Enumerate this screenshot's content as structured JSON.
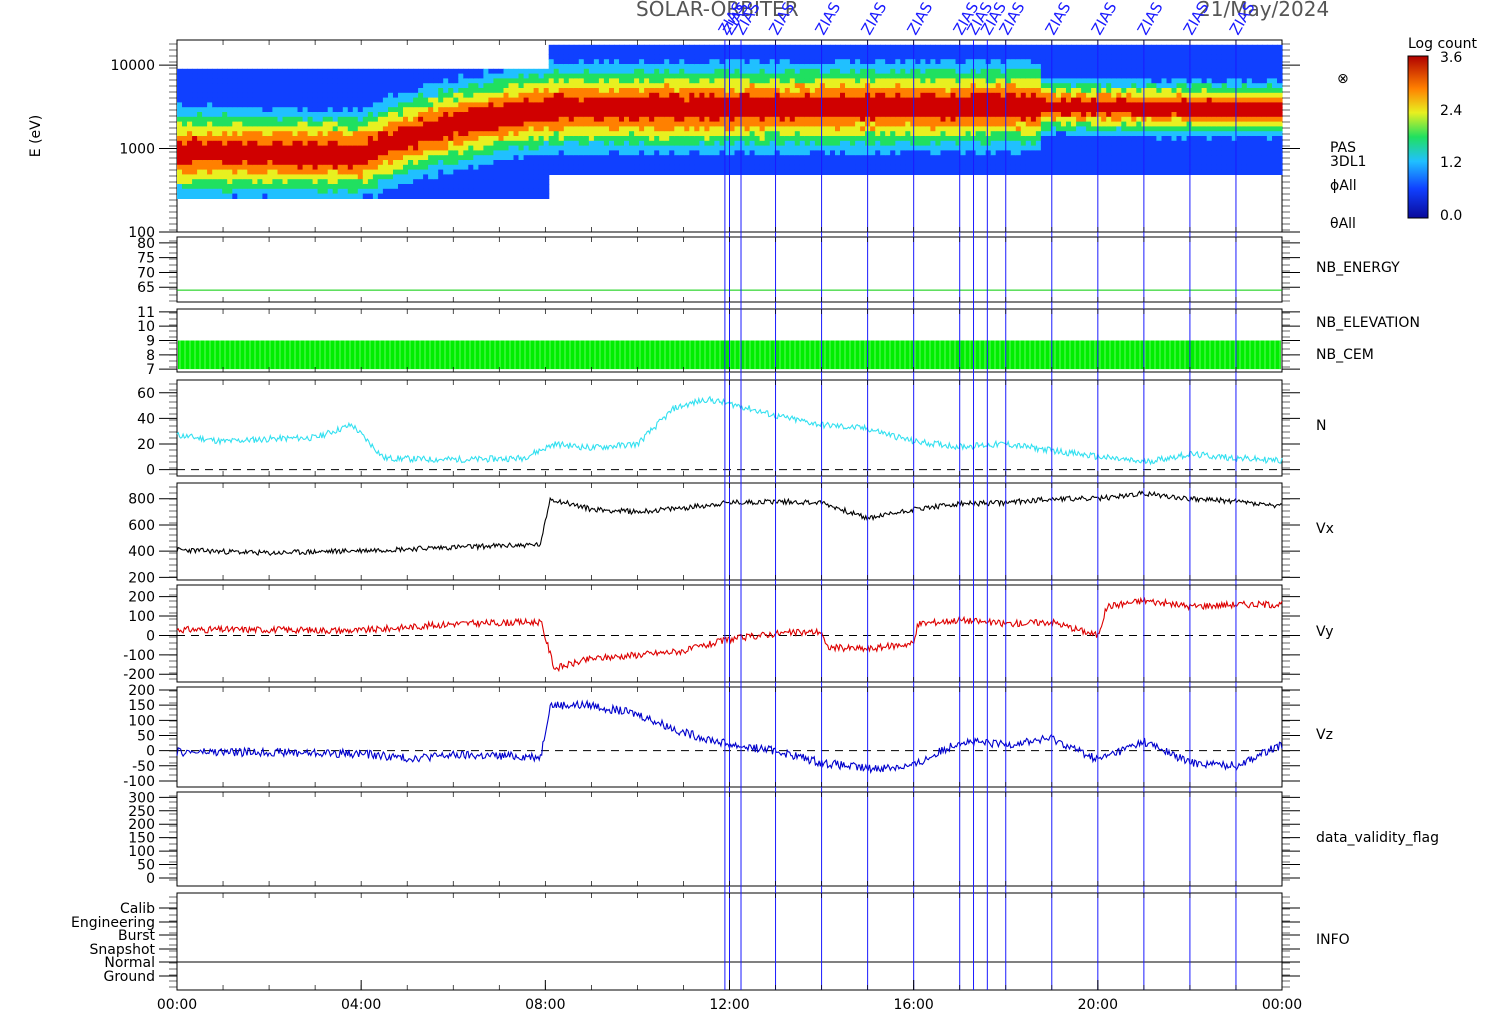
{
  "title": "SOLAR-ORBITER",
  "date": "21/May/2024",
  "x_ticks": [
    "00:00",
    "04:00",
    "08:00",
    "12:00",
    "16:00",
    "20:00",
    "00:00"
  ],
  "events": [
    "ZIAS",
    "ZIAS",
    "ZIAS",
    "ZIAS",
    "ZIAS",
    "ZIAS",
    "ZIAS",
    "ZIAS",
    "ZIAS",
    "ZIAS",
    "ZIAS",
    "ZIAS",
    "ZIAS",
    "ZIAS",
    "ZIAS",
    "ZIAS"
  ],
  "event_hours": [
    11.9,
    12.0,
    12.25,
    13.0,
    14.0,
    15.0,
    16.0,
    17.0,
    17.3,
    17.6,
    18.0,
    19.0,
    20.0,
    21.0,
    22.0,
    23.0
  ],
  "colors": {
    "event_line": "#1a1aff",
    "energy": "#00cc00",
    "cem": "#00ee00",
    "N": "#33e0f0",
    "Vx": "#000000",
    "Vy": "#dd0000",
    "Vz": "#0000cc"
  },
  "colorbar": {
    "title": "Log count",
    "ticks": [
      "3.6",
      "2.4",
      "1.2",
      "0.0"
    ]
  },
  "chart_data": [
    {
      "type": "heatmap",
      "ylabel": "E (eV)",
      "y_ticks": [
        "10000",
        "1000",
        "100"
      ],
      "ylim": [
        100,
        20000
      ],
      "yscale": "log",
      "right_labels": [
        "PAS",
        "3DL1",
        "ϕAll",
        "θAll"
      ],
      "band_hours": [
        0,
        4,
        4.5,
        8.1,
        18.8,
        24
      ],
      "band_peak_eV": [
        900,
        850,
        1100,
        3000,
        3200,
        2900
      ]
    },
    {
      "type": "line",
      "name": "NB_ENERGY",
      "y_ticks": [
        "80",
        "75",
        "70",
        "65"
      ],
      "ylim": [
        60,
        82
      ],
      "series": [
        {
          "name": "NB_ENERGY",
          "x": [
            0,
            24
          ],
          "values": [
            64,
            64
          ]
        }
      ]
    },
    {
      "type": "area",
      "name": "NB_ELEVATION",
      "right_labels": [
        "NB_ELEVATION",
        "NB_CEM"
      ],
      "y_ticks": [
        "11",
        "10",
        "9",
        "8",
        "7"
      ],
      "ylim": [
        6.8,
        11.2
      ],
      "band": [
        7.0,
        9.0
      ]
    },
    {
      "type": "line",
      "name": "N",
      "y_ticks": [
        "60",
        "40",
        "20",
        "0"
      ],
      "ylim": [
        -5,
        70
      ],
      "series": [
        {
          "name": "N",
          "x": [
            0,
            1,
            2,
            3,
            3.8,
            4.5,
            5.5,
            6.5,
            7.5,
            8.2,
            9,
            10,
            10.8,
            11.5,
            12.2,
            13,
            14,
            15,
            16,
            17,
            18,
            19,
            20,
            21,
            22,
            23,
            24
          ],
          "values": [
            27,
            22,
            24,
            25,
            35,
            9,
            8,
            8,
            9,
            20,
            17,
            20,
            48,
            55,
            50,
            42,
            35,
            32,
            22,
            18,
            20,
            15,
            10,
            6,
            12,
            9,
            7
          ]
        }
      ]
    },
    {
      "type": "line",
      "name": "Vx",
      "y_ticks": [
        "800",
        "600",
        "400",
        "200"
      ],
      "ylim": [
        180,
        920
      ],
      "series": [
        {
          "name": "Vx",
          "x": [
            0,
            2,
            4,
            6,
            7.9,
            8.1,
            9,
            10,
            11,
            12,
            13,
            14,
            15,
            16,
            17,
            18,
            19,
            20,
            21,
            22,
            23,
            24
          ],
          "values": [
            410,
            385,
            405,
            430,
            450,
            800,
            720,
            700,
            730,
            770,
            780,
            770,
            650,
            720,
            760,
            770,
            800,
            800,
            840,
            800,
            780,
            740
          ]
        }
      ]
    },
    {
      "type": "line",
      "name": "Vy",
      "y_ticks": [
        "200",
        "100",
        "0",
        "-100",
        "-200"
      ],
      "ylim": [
        -240,
        260
      ],
      "series": [
        {
          "name": "Vy",
          "x": [
            0,
            2,
            4,
            6,
            7.9,
            8.2,
            9,
            10,
            11,
            12,
            13,
            14,
            14.1,
            15,
            16,
            16.1,
            17,
            18,
            19,
            20,
            20.2,
            21,
            22,
            23,
            24
          ],
          "values": [
            30,
            30,
            25,
            60,
            70,
            -170,
            -120,
            -100,
            -80,
            -20,
            10,
            20,
            -60,
            -70,
            -40,
            60,
            80,
            60,
            70,
            0,
            150,
            180,
            150,
            160,
            160
          ]
        }
      ]
    },
    {
      "type": "line",
      "name": "Vz",
      "y_ticks": [
        "200",
        "150",
        "100",
        "50",
        "0",
        "-50",
        "-100"
      ],
      "ylim": [
        -120,
        210
      ],
      "series": [
        {
          "name": "Vz",
          "x": [
            0,
            2,
            4,
            5,
            6,
            7.9,
            8.1,
            9,
            10,
            11,
            12,
            13,
            14,
            15,
            16,
            17,
            18,
            19,
            20,
            21,
            22,
            23,
            24
          ],
          "values": [
            -5,
            -5,
            -10,
            -25,
            -15,
            -20,
            150,
            150,
            120,
            60,
            20,
            0,
            -40,
            -60,
            -50,
            30,
            20,
            40,
            -30,
            30,
            -40,
            -50,
            20
          ]
        }
      ]
    },
    {
      "type": "line",
      "name": "data_validity_flag",
      "y_ticks": [
        "300",
        "250",
        "200",
        "150",
        "100",
        "50",
        "0"
      ],
      "ylim": [
        -30,
        320
      ],
      "series": []
    },
    {
      "type": "line",
      "name": "INFO",
      "y_ticks": [
        "Calib",
        "Engineering",
        "Burst",
        "Snapshot",
        "Normal",
        "Ground"
      ],
      "series": [
        {
          "name": "INFO",
          "x": [
            0,
            24
          ],
          "values": [
            "Normal",
            "Normal"
          ]
        }
      ]
    }
  ]
}
